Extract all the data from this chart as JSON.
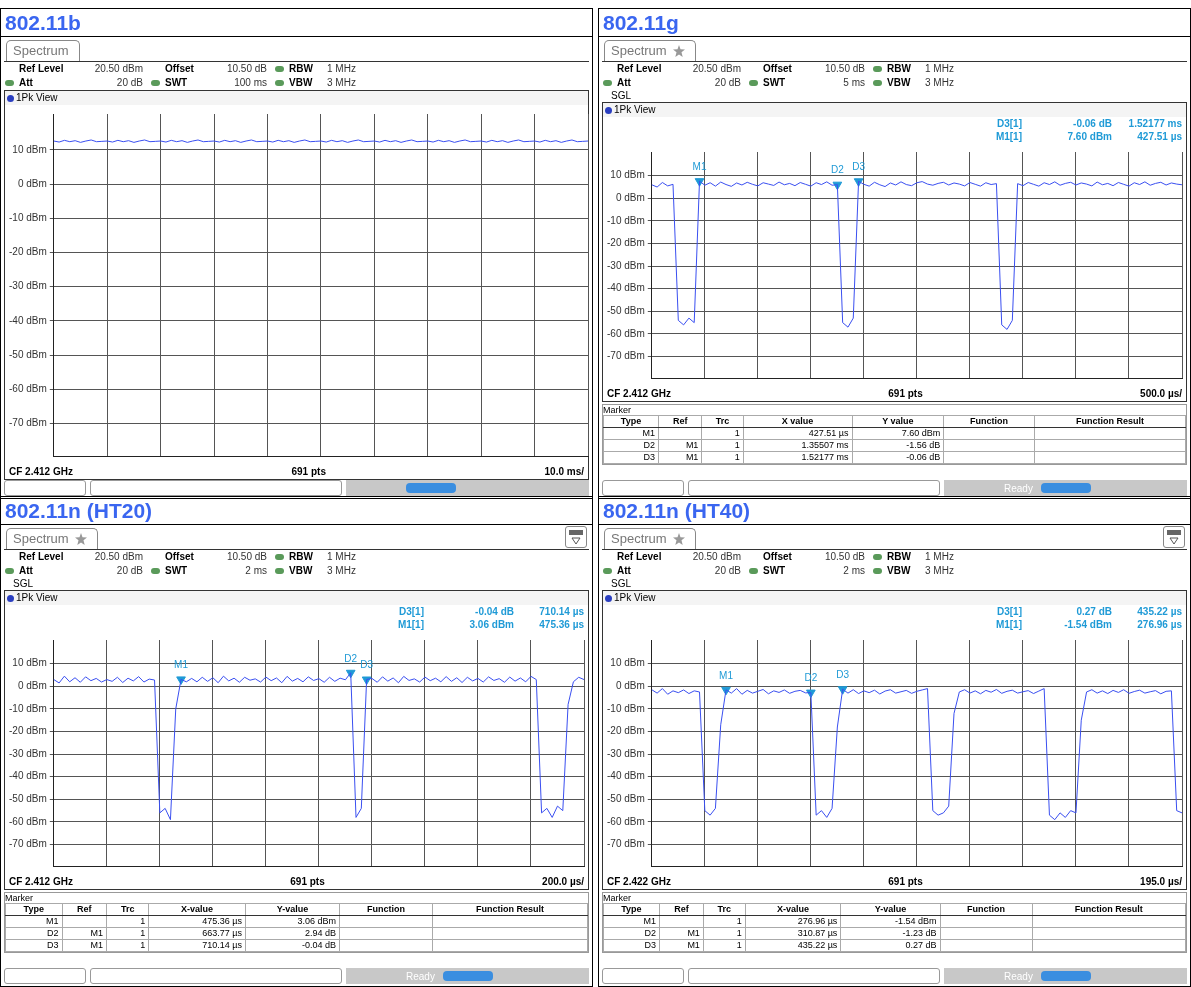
{
  "chart_data": [
    {
      "type": "line",
      "title": "802.11b",
      "grid": true,
      "tick_labels": "y",
      "ylim": [
        -79.5,
        20.5
      ],
      "yticks": [
        {
          "value": 10,
          "label": "10 dBm"
        },
        {
          "value": 0,
          "label": "0 dBm"
        },
        {
          "value": -10,
          "label": "-10 dBm"
        },
        {
          "value": -20,
          "label": "-20 dBm"
        },
        {
          "value": -30,
          "label": "-30 dBm"
        },
        {
          "value": -40,
          "label": "-40 dBm"
        },
        {
          "value": -50,
          "label": "-50 dBm"
        },
        {
          "value": -60,
          "label": "-60 dBm"
        },
        {
          "value": -70,
          "label": "-70 dBm"
        }
      ],
      "categories": [
        null,
        null,
        null,
        null,
        null,
        null,
        null,
        null,
        null,
        null,
        null,
        null,
        null,
        null,
        null,
        null,
        null,
        null,
        null,
        null,
        null,
        null,
        null,
        null,
        null,
        null,
        null,
        null,
        null,
        null,
        null,
        null,
        null,
        null,
        null,
        null,
        null,
        null,
        null,
        null,
        null,
        null,
        null,
        null,
        null,
        null,
        null,
        null,
        null,
        null,
        null,
        null,
        null,
        null,
        null,
        null,
        null,
        null,
        null,
        null,
        null,
        null,
        null,
        null,
        null,
        null,
        null,
        null,
        null,
        null,
        null,
        null,
        null,
        null,
        null,
        null,
        null,
        null,
        null,
        null,
        null,
        null,
        null,
        null,
        null,
        null,
        null,
        null,
        null,
        null,
        null,
        null,
        null,
        null,
        null,
        null,
        null,
        null,
        null,
        null,
        null
      ],
      "series": [
        {
          "color": "#3a4ff0",
          "values": [
            12.6,
            12.3,
            12.8,
            12.4,
            12.7,
            12.2,
            12.6,
            12.9,
            12.4,
            12.5,
            12.6,
            12.3,
            12.8,
            12.4,
            12.7,
            12.2,
            12.6,
            12.9,
            12.4,
            12.5,
            12.6,
            12.3,
            12.8,
            12.4,
            12.7,
            12.2,
            12.6,
            12.9,
            12.4,
            12.5,
            12.6,
            12.3,
            12.8,
            12.4,
            12.7,
            12.2,
            12.6,
            12.9,
            12.4,
            12.5,
            12.6,
            12.3,
            12.8,
            12.4,
            12.7,
            12.2,
            12.6,
            12.9,
            12.4,
            12.5,
            12.6,
            12.3,
            12.8,
            12.4,
            12.7,
            12.2,
            12.6,
            12.9,
            12.4,
            12.5,
            12.6,
            12.3,
            12.8,
            12.4,
            12.7,
            12.2,
            12.6,
            12.9,
            12.4,
            12.5,
            12.6,
            12.3,
            12.8,
            12.4,
            12.7,
            12.2,
            12.6,
            12.9,
            12.4,
            12.5,
            12.6,
            12.3,
            12.8,
            12.4,
            12.7,
            12.2,
            12.6,
            12.9,
            12.4,
            12.5,
            12.6,
            12.3,
            12.8,
            12.4,
            12.7,
            12.2,
            12.6,
            12.9,
            12.4,
            12.5,
            12.6
          ]
        }
      ],
      "annotations": [
        "Spectrum",
        "Ref Level",
        "20.50 dBm",
        "Offset",
        "10.50 dB",
        "RBW",
        "1 MHz",
        "Att",
        "20 dB",
        "SWT",
        "100 ms",
        "VBW",
        "3 MHz",
        "1Pk View",
        "CF 2.412 GHz",
        "691 pts",
        "10.0 ms/"
      ]
    },
    {
      "type": "line",
      "title": "802.11g",
      "grid": true,
      "tick_labels": "y",
      "ylim": [
        -79.5,
        20.5
      ],
      "yticks": [
        {
          "value": 10,
          "label": "10 dBm"
        },
        {
          "value": 0,
          "label": "0 dBm"
        },
        {
          "value": -10,
          "label": "-10 dBm"
        },
        {
          "value": -20,
          "label": "-20 dBm"
        },
        {
          "value": -30,
          "label": "-30 dBm"
        },
        {
          "value": -40,
          "label": "-40 dBm"
        },
        {
          "value": -50,
          "label": "-50 dBm"
        },
        {
          "value": -60,
          "label": "-60 dBm"
        },
        {
          "value": -70,
          "label": "-70 dBm"
        }
      ],
      "categories": [
        null,
        null,
        null,
        null,
        null,
        null,
        null,
        null,
        null,
        null,
        null,
        null,
        null,
        null,
        null,
        null,
        null,
        null,
        null,
        null,
        null,
        null,
        null,
        null,
        null,
        null,
        null,
        null,
        null,
        null,
        null,
        null,
        null,
        null,
        null,
        null,
        null,
        null,
        null,
        null,
        null,
        null,
        null,
        null,
        null,
        null,
        null,
        null,
        null,
        null,
        null,
        null,
        null,
        null,
        null,
        null,
        null,
        null,
        null,
        null,
        null,
        null,
        null,
        null,
        null,
        null,
        null,
        null,
        null,
        null,
        null,
        null,
        null,
        null,
        null,
        null,
        null,
        null,
        null,
        null,
        null,
        null,
        null,
        null,
        null,
        null,
        null,
        null,
        null,
        null,
        null,
        null,
        null,
        null,
        null,
        null,
        null,
        null,
        null,
        null,
        null
      ],
      "series": [
        {
          "color": "#3a4ff0",
          "values": [
            6,
            5,
            7,
            5.5,
            6.2,
            -54,
            -56,
            -53,
            -55,
            7.6,
            5.8,
            6.9,
            5.4,
            7.2,
            6.1,
            5.3,
            6.8,
            5.9,
            7.1,
            6.2,
            5.5,
            6.9,
            6.3,
            5.7,
            7.2,
            6.0,
            6.6,
            5.6,
            7.0,
            6.2,
            5.4,
            6.9,
            6.1,
            7.3,
            5.8,
            6.04,
            -55,
            -57,
            -53,
            7.54,
            6.2,
            5.4,
            7.1,
            6.0,
            5.2,
            6.8,
            5.9,
            7.3,
            6.1,
            5.6,
            6.9,
            7.4,
            6.3,
            5.8,
            6.6,
            7.1,
            5.9,
            6.8,
            6.3,
            5.5,
            7.0,
            6.2,
            5.4,
            6.9,
            6.1,
            6.5,
            -56,
            -58,
            -54,
            6.5,
            5.6,
            7.0,
            6.2,
            5.4,
            6.9,
            6.1,
            7.3,
            5.8,
            6.6,
            7.1,
            5.9,
            6.8,
            6.3,
            5.5,
            7.2,
            6.0,
            6.6,
            5.6,
            7.0,
            6.2,
            5.4,
            6.9,
            6.1,
            7.3,
            5.8,
            6.6,
            7.1,
            5.9,
            6.8,
            6.3,
            6.0
          ]
        },
        {
          "type": "scatter",
          "marker": "triangle",
          "color": "#1f9ad6",
          "values": [
            null,
            null,
            null,
            null,
            null,
            null,
            null,
            null,
            null,
            7.6,
            null,
            null,
            null,
            null,
            null,
            null,
            null,
            null,
            null,
            null,
            null,
            null,
            null,
            null,
            null,
            null,
            null,
            null,
            null,
            null,
            null,
            null,
            null,
            null,
            null,
            6.04,
            null,
            null,
            null,
            7.54,
            null,
            null,
            null,
            null,
            null,
            null,
            null,
            null,
            null,
            null,
            null,
            null,
            null,
            null,
            null,
            null,
            null,
            null,
            null,
            null,
            null,
            null,
            null,
            null,
            null,
            null,
            null,
            null,
            null,
            null,
            null,
            null,
            null,
            null,
            null,
            null,
            null,
            null,
            null,
            null,
            null,
            null,
            null,
            null,
            null,
            null,
            null,
            null,
            null,
            null,
            null,
            null,
            null,
            null,
            null,
            null,
            null,
            null,
            null,
            null,
            null
          ],
          "value_labels": [
            null,
            null,
            null,
            null,
            null,
            null,
            null,
            null,
            null,
            "M1",
            null,
            null,
            null,
            null,
            null,
            null,
            null,
            null,
            null,
            null,
            null,
            null,
            null,
            null,
            null,
            null,
            null,
            null,
            null,
            null,
            null,
            null,
            null,
            null,
            null,
            "D2",
            null,
            null,
            null,
            "D3",
            null,
            null,
            null,
            null,
            null,
            null,
            null,
            null,
            null,
            null,
            null,
            null,
            null,
            null,
            null,
            null,
            null,
            null,
            null,
            null,
            null,
            null,
            null,
            null,
            null,
            null,
            null,
            null,
            null,
            null,
            null,
            null,
            null,
            null,
            null,
            null,
            null,
            null,
            null,
            null,
            null,
            null,
            null,
            null,
            null,
            null,
            null,
            null,
            null,
            null,
            null,
            null,
            null,
            null,
            null,
            null,
            null,
            null,
            null,
            null,
            null
          ]
        }
      ],
      "annotations": [
        "Spectrum",
        "Ref Level",
        "20.50 dBm",
        "Offset",
        "10.50 dB",
        "RBW",
        "1 MHz",
        "Att",
        "20 dB",
        "SWT",
        "5 ms",
        "VBW",
        "3 MHz",
        "SGL",
        "1Pk View",
        "D3[1]",
        "-0.06 dB",
        "1.52177 ms",
        "M1[1]",
        "7.60 dBm",
        "427.51 µs",
        "CF 2.412 GHz",
        "691 pts",
        "500.0 µs/",
        "Marker",
        "Type",
        "Ref",
        "Trc",
        "X value",
        "Y value",
        "Function",
        "Function Result",
        "M1",
        "1",
        "427.51 µs",
        "7.60 dBm",
        "D2",
        "M1",
        "1",
        "1.35507 ms",
        "-1.56 dB",
        "D3",
        "M1",
        "1",
        "1.52177 ms",
        "-0.06 dB",
        "Ready"
      ]
    },
    {
      "type": "line",
      "title": "802.11n (HT20)",
      "grid": true,
      "tick_labels": "y",
      "ylim": [
        -79.5,
        20.5
      ],
      "yticks": [
        {
          "value": 10,
          "label": "10 dBm"
        },
        {
          "value": 0,
          "label": "0 dBm"
        },
        {
          "value": -10,
          "label": "-10 dBm"
        },
        {
          "value": -20,
          "label": "-20 dBm"
        },
        {
          "value": -30,
          "label": "-30 dBm"
        },
        {
          "value": -40,
          "label": "-40 dBm"
        },
        {
          "value": -50,
          "label": "-50 dBm"
        },
        {
          "value": -60,
          "label": "-60 dBm"
        },
        {
          "value": -70,
          "label": "-70 dBm"
        }
      ],
      "categories": [
        null,
        null,
        null,
        null,
        null,
        null,
        null,
        null,
        null,
        null,
        null,
        null,
        null,
        null,
        null,
        null,
        null,
        null,
        null,
        null,
        null,
        null,
        null,
        null,
        null,
        null,
        null,
        null,
        null,
        null,
        null,
        null,
        null,
        null,
        null,
        null,
        null,
        null,
        null,
        null,
        null,
        null,
        null,
        null,
        null,
        null,
        null,
        null,
        null,
        null,
        null,
        null,
        null,
        null,
        null,
        null,
        null,
        null,
        null,
        null,
        null,
        null,
        null,
        null,
        null,
        null,
        null,
        null,
        null,
        null,
        null,
        null,
        null,
        null,
        null,
        null,
        null,
        null,
        null,
        null,
        null,
        null,
        null,
        null,
        null,
        null,
        null,
        null,
        null,
        null,
        null,
        null,
        null,
        null,
        null,
        null,
        null,
        null,
        null,
        null,
        null
      ],
      "series": [
        {
          "color": "#3a4ff0",
          "values": [
            3,
            1.5,
            4.5,
            2,
            3.8,
            1.8,
            4.2,
            2.5,
            3.5,
            1.9,
            3,
            2.2,
            4,
            1.7,
            3.6,
            2.4,
            4.3,
            1.9,
            3.2,
            2.8,
            -56,
            -54,
            -59,
            -10,
            3.06,
            2,
            3.5,
            2,
            4,
            2.2,
            3.8,
            1.6,
            4.5,
            2.4,
            3.6,
            1.8,
            4,
            2.7,
            3.3,
            1.9,
            4.1,
            2.5,
            3.7,
            1.6,
            4.4,
            2.3,
            3.5,
            2,
            4.2,
            2.6,
            3.4,
            1.8,
            4,
            2.2,
            3.6,
            2.9,
            6.0,
            -58,
            -54,
            3.02,
            3.5,
            1.8,
            4.2,
            2.3,
            3.7,
            1.6,
            4.4,
            2.6,
            3.3,
            1.9,
            4.1,
            2.5,
            3.6,
            2,
            4.3,
            2.2,
            3.8,
            1.7,
            4,
            2.4,
            3.5,
            1.9,
            4.2,
            2.6,
            3.4,
            1.8,
            4.1,
            2.3,
            3.7,
            2,
            4.4,
            3,
            -56,
            -54,
            -58,
            -53,
            -55,
            -8,
            2,
            4,
            3
          ]
        },
        {
          "type": "scatter",
          "marker": "triangle",
          "color": "#1f9ad6",
          "values": [
            null,
            null,
            null,
            null,
            null,
            null,
            null,
            null,
            null,
            null,
            null,
            null,
            null,
            null,
            null,
            null,
            null,
            null,
            null,
            null,
            null,
            null,
            null,
            null,
            3.06,
            null,
            null,
            null,
            null,
            null,
            null,
            null,
            null,
            null,
            null,
            null,
            null,
            null,
            null,
            null,
            null,
            null,
            null,
            null,
            null,
            null,
            null,
            null,
            null,
            null,
            null,
            null,
            null,
            null,
            null,
            null,
            6.0,
            null,
            null,
            3.02,
            null,
            null,
            null,
            null,
            null,
            null,
            null,
            null,
            null,
            null,
            null,
            null,
            null,
            null,
            null,
            null,
            null,
            null,
            null,
            null,
            null,
            null,
            null,
            null,
            null,
            null,
            null,
            null,
            null,
            null,
            null,
            null,
            null,
            null,
            null,
            null,
            null,
            null,
            null,
            null,
            null
          ],
          "value_labels": [
            null,
            null,
            null,
            null,
            null,
            null,
            null,
            null,
            null,
            null,
            null,
            null,
            null,
            null,
            null,
            null,
            null,
            null,
            null,
            null,
            null,
            null,
            null,
            null,
            "M1",
            null,
            null,
            null,
            null,
            null,
            null,
            null,
            null,
            null,
            null,
            null,
            null,
            null,
            null,
            null,
            null,
            null,
            null,
            null,
            null,
            null,
            null,
            null,
            null,
            null,
            null,
            null,
            null,
            null,
            null,
            null,
            "D2",
            null,
            null,
            "D3",
            null,
            null,
            null,
            null,
            null,
            null,
            null,
            null,
            null,
            null,
            null,
            null,
            null,
            null,
            null,
            null,
            null,
            null,
            null,
            null,
            null,
            null,
            null,
            null,
            null,
            null,
            null,
            null,
            null,
            null,
            null,
            null,
            null,
            null,
            null,
            null,
            null,
            null,
            null,
            null,
            null
          ]
        }
      ],
      "annotations": [
        "Spectrum",
        "Ref Level",
        "20.50 dBm",
        "Offset",
        "10.50 dB",
        "RBW",
        "1 MHz",
        "Att",
        "20 dB",
        "SWT",
        "2 ms",
        "VBW",
        "3 MHz",
        "SGL",
        "1Pk View",
        "D3[1]",
        "-0.04 dB",
        "710.14 µs",
        "M1[1]",
        "3.06 dBm",
        "475.36 µs",
        "CF 2.412 GHz",
        "691 pts",
        "200.0 µs/",
        "Marker",
        "Type",
        "Ref",
        "Trc",
        "X-value",
        "Y-value",
        "Function",
        "Function Result",
        "M1",
        "1",
        "475.36 µs",
        "3.06 dBm",
        "D2",
        "M1",
        "1",
        "663.77 µs",
        "2.94 dB",
        "D3",
        "M1",
        "1",
        "710.14 µs",
        "-0.04 dB",
        "Ready"
      ]
    },
    {
      "type": "line",
      "title": "802.11n (HT40)",
      "grid": true,
      "tick_labels": "y",
      "ylim": [
        -79.5,
        20.5
      ],
      "yticks": [
        {
          "value": 10,
          "label": "10 dBm"
        },
        {
          "value": 0,
          "label": "0 dBm"
        },
        {
          "value": -10,
          "label": "-10 dBm"
        },
        {
          "value": -20,
          "label": "-20 dBm"
        },
        {
          "value": -30,
          "label": "-30 dBm"
        },
        {
          "value": -40,
          "label": "-40 dBm"
        },
        {
          "value": -50,
          "label": "-50 dBm"
        },
        {
          "value": -60,
          "label": "-60 dBm"
        },
        {
          "value": -70,
          "label": "-70 dBm"
        }
      ],
      "categories": [
        null,
        null,
        null,
        null,
        null,
        null,
        null,
        null,
        null,
        null,
        null,
        null,
        null,
        null,
        null,
        null,
        null,
        null,
        null,
        null,
        null,
        null,
        null,
        null,
        null,
        null,
        null,
        null,
        null,
        null,
        null,
        null,
        null,
        null,
        null,
        null,
        null,
        null,
        null,
        null,
        null,
        null,
        null,
        null,
        null,
        null,
        null,
        null,
        null,
        null,
        null,
        null,
        null,
        null,
        null,
        null,
        null,
        null,
        null,
        null,
        null,
        null,
        null,
        null,
        null,
        null,
        null,
        null,
        null,
        null,
        null,
        null,
        null,
        null,
        null,
        null,
        null,
        null,
        null,
        null,
        null,
        null,
        null,
        null,
        null,
        null,
        null,
        null,
        null,
        null,
        null,
        null,
        null,
        null,
        null,
        null,
        null,
        null,
        null,
        null,
        null
      ],
      "series": [
        {
          "color": "#3a4ff0",
          "values": [
            -1.5,
            -3,
            -1,
            -3.5,
            -2,
            -2.8,
            -1.6,
            -3.2,
            -2,
            -2.5,
            -55,
            -57,
            -54,
            -17,
            -1.54,
            -3,
            -1,
            -3.5,
            -1.8,
            -3,
            -2.2,
            -1.4,
            -3.3,
            -2,
            -2.7,
            -1.6,
            -3.1,
            -2.2,
            -1.8,
            -2.9,
            -2.77,
            -57,
            -55,
            -58,
            -54,
            -18,
            -1.27,
            -3,
            -1.5,
            -3.2,
            -2,
            -2.8,
            -1.7,
            -3.4,
            -2.1,
            -1.5,
            -3,
            -2.4,
            -1.8,
            -3.1,
            -2.2,
            -1.6,
            -1,
            -55,
            -57,
            -56,
            -53,
            -12,
            -2.5,
            -1.5,
            -3,
            -2,
            -3.3,
            -1.8,
            -2.6,
            -1.4,
            -3.1,
            -2.2,
            -1.7,
            -3,
            -2.4,
            -1.9,
            -3.2,
            -2.1,
            -1,
            -57,
            -59,
            -56,
            -58,
            -55,
            -56,
            -15,
            -2.5,
            -1.5,
            -3,
            -2,
            -3.2,
            -1.8,
            -2.7,
            -1.5,
            -3.1,
            -2.3,
            -1.7,
            -3,
            -2.4,
            -1.9,
            -3.3,
            -2.2,
            -2,
            -55,
            -56
          ]
        },
        {
          "type": "scatter",
          "marker": "triangle",
          "color": "#1f9ad6",
          "values": [
            null,
            null,
            null,
            null,
            null,
            null,
            null,
            null,
            null,
            null,
            null,
            null,
            null,
            null,
            -1.54,
            null,
            null,
            null,
            null,
            null,
            null,
            null,
            null,
            null,
            null,
            null,
            null,
            null,
            null,
            null,
            -2.77,
            null,
            null,
            null,
            null,
            null,
            -1.27,
            null,
            null,
            null,
            null,
            null,
            null,
            null,
            null,
            null,
            null,
            null,
            null,
            null,
            null,
            null,
            null,
            null,
            null,
            null,
            null,
            null,
            null,
            null,
            null,
            null,
            null,
            null,
            null,
            null,
            null,
            null,
            null,
            null,
            null,
            null,
            null,
            null,
            null,
            null,
            null,
            null,
            null,
            null,
            null,
            null,
            null,
            null,
            null,
            null,
            null,
            null,
            null,
            null,
            null,
            null,
            null,
            null,
            null,
            null,
            null,
            null,
            null,
            null,
            null
          ],
          "value_labels": [
            null,
            null,
            null,
            null,
            null,
            null,
            null,
            null,
            null,
            null,
            null,
            null,
            null,
            null,
            "M1",
            null,
            null,
            null,
            null,
            null,
            null,
            null,
            null,
            null,
            null,
            null,
            null,
            null,
            null,
            null,
            "D2",
            null,
            null,
            null,
            null,
            null,
            "D3",
            null,
            null,
            null,
            null,
            null,
            null,
            null,
            null,
            null,
            null,
            null,
            null,
            null,
            null,
            null,
            null,
            null,
            null,
            null,
            null,
            null,
            null,
            null,
            null,
            null,
            null,
            null,
            null,
            null,
            null,
            null,
            null,
            null,
            null,
            null,
            null,
            null,
            null,
            null,
            null,
            null,
            null,
            null,
            null,
            null,
            null,
            null,
            null,
            null,
            null,
            null,
            null,
            null,
            null,
            null,
            null,
            null,
            null,
            null,
            null,
            null,
            null,
            null,
            null
          ]
        }
      ],
      "annotations": [
        "Spectrum",
        "Ref Level",
        "20.50 dBm",
        "Offset",
        "10.50 dB",
        "RBW",
        "1 MHz",
        "Att",
        "20 dB",
        "SWT",
        "2 ms",
        "VBW",
        "3 MHz",
        "SGL",
        "1Pk View",
        "D3[1]",
        "0.27 dB",
        "435.22 µs",
        "M1[1]",
        "-1.54 dBm",
        "276.96 µs",
        "CF 2.422 GHz",
        "691 pts",
        "195.0 µs/",
        "Marker",
        "Type",
        "Ref",
        "Trc",
        "X-value",
        "Y-value",
        "Function",
        "Function Result",
        "M1",
        "1",
        "276.96 µs",
        "-1.54 dBm",
        "D2",
        "M1",
        "1",
        "310.87 µs",
        "-1.23 dB",
        "D3",
        "M1",
        "1",
        "435.22 µs",
        "0.27 dB",
        "Ready"
      ]
    }
  ]
}
